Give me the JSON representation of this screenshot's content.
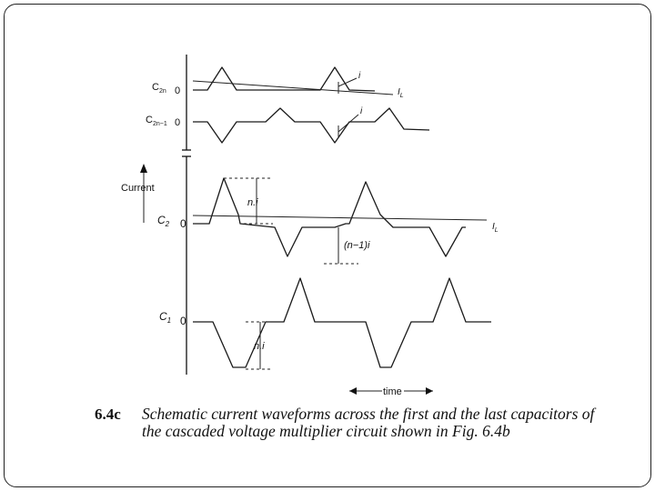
{
  "labels": {
    "c2n": "C",
    "c2n_sub": "2n",
    "c2n1": "C",
    "c2n1_sub": "2n−1",
    "c2": "C",
    "c2_sub": "2",
    "c1": "C",
    "c1_sub": "1",
    "zero": "0",
    "current": "Current",
    "i": "i",
    "il": "I",
    "il_sub": "L",
    "ni_top": "n.i",
    "ni_bottom": "n.i",
    "n1i": "(n−1)i",
    "time": "time"
  },
  "caption": {
    "figure_number": "6.4c",
    "text": "Schematic current waveforms across the first and the last capacitors of the cascaded voltage multiplier circuit shown in Fig. 6.4b"
  }
}
